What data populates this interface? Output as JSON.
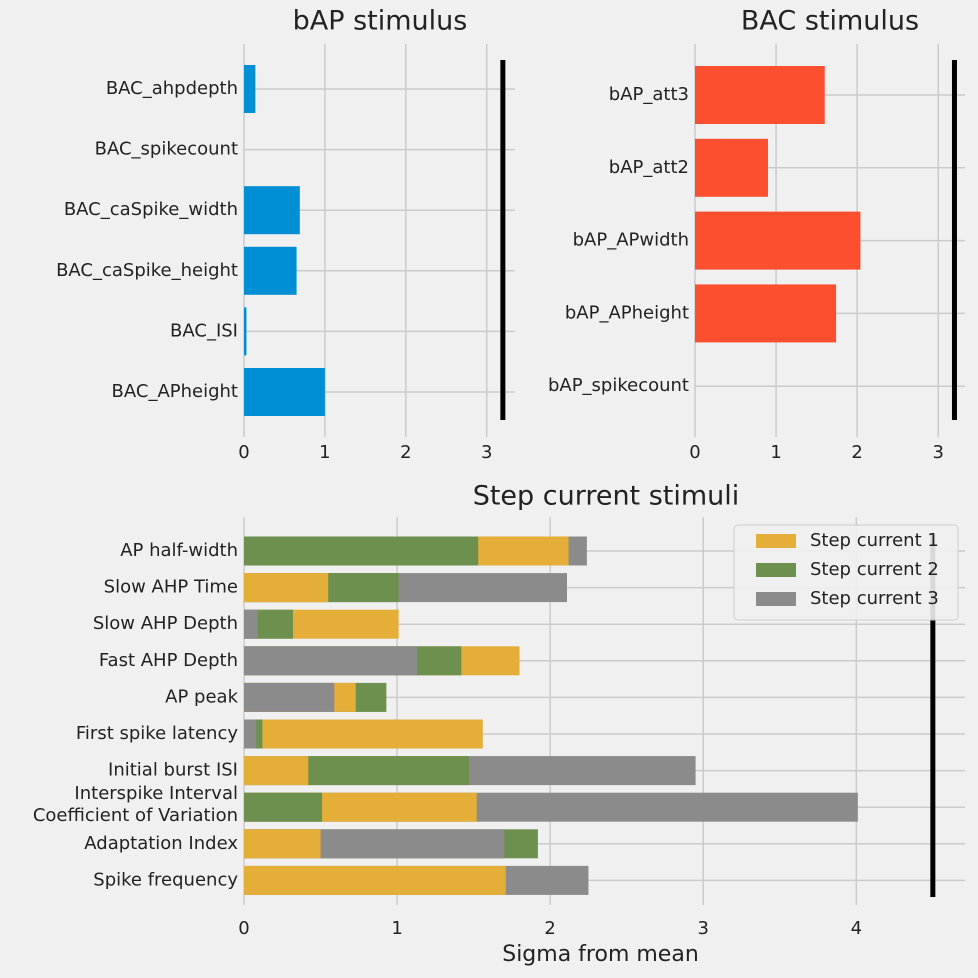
{
  "chart_data": [
    {
      "type": "barh",
      "title": "bAP stimulus",
      "categories": [
        "BAC_ahpdepth",
        "BAC_spikecount",
        "BAC_caSpike_width",
        "BAC_caSpike_height",
        "BAC_ISI",
        "BAC_APheight"
      ],
      "values": [
        0.14,
        0,
        0.69,
        0.65,
        0.03,
        1.0
      ],
      "color": "#008fd5",
      "xlim": [
        0,
        3.35
      ],
      "xticks": [
        0,
        1,
        2,
        3
      ],
      "threshold": 3.2,
      "grid": true
    },
    {
      "type": "barh",
      "title": "BAC stimulus",
      "categories": [
        "bAP_att3",
        "bAP_att2",
        "bAP_APwidth",
        "bAP_APheight",
        "bAP_spikecount"
      ],
      "values": [
        1.6,
        0.9,
        2.04,
        1.74,
        0
      ],
      "color": "#fc4f30",
      "xlim": [
        0,
        3.33
      ],
      "xticks": [
        0,
        1,
        2,
        3
      ],
      "threshold": 3.2,
      "grid": true
    },
    {
      "type": "barh",
      "title": "Step current stimuli",
      "xlabel": "Sigma from mean",
      "categories": [
        "AP half-width",
        "Slow AHP Time",
        "Slow AHP Depth",
        "Fast AHP Depth",
        "AP peak",
        "First spike latency",
        "Initial burst ISI",
        "Interspike Interval \nCoefficient of Variation",
        "Adaptation Index",
        "Spike frequency"
      ],
      "series": [
        {
          "name": "Step current 1",
          "color": "#e5ae38",
          "values": [
            2.12,
            0.55,
            1.01,
            1.8,
            0.73,
            1.56,
            0.42,
            1.52,
            0.5,
            1.71
          ]
        },
        {
          "name": "Step current 2",
          "color": "#6d904f",
          "values": [
            1.53,
            1.01,
            0.32,
            1.42,
            0.93,
            0.12,
            1.47,
            0.51,
            1.92,
            0
          ]
        },
        {
          "name": "Step current 3",
          "color": "#8b8b8b",
          "values": [
            2.24,
            2.11,
            0.09,
            1.13,
            0.59,
            0.08,
            2.95,
            4.01,
            1.7,
            2.25
          ]
        }
      ],
      "xlim": [
        0,
        4.71
      ],
      "xticks": [
        0,
        1,
        2,
        3,
        4
      ],
      "threshold": 4.5,
      "grid": true,
      "legend": "upper right"
    }
  ]
}
